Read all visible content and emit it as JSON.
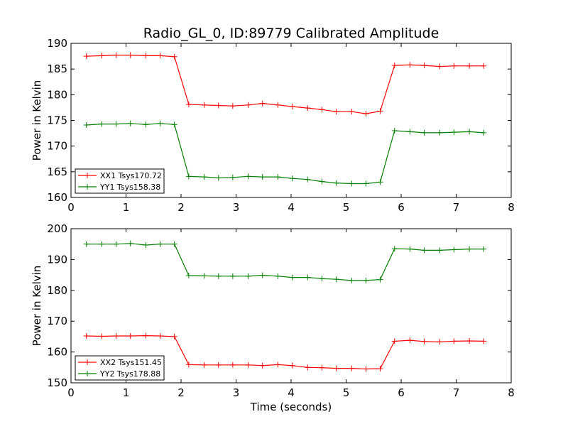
{
  "figure": {
    "title": "Radio_GL_0, ID:89779 Calibrated Amplitude"
  },
  "chart_data": [
    {
      "type": "line",
      "title": "Radio_GL_0, ID:89779 Calibrated Amplitude",
      "xlabel": "",
      "ylabel": "Power in Kelvin",
      "xlim": [
        0,
        8
      ],
      "ylim": [
        160,
        190
      ],
      "xticks": [
        0,
        1,
        2,
        3,
        4,
        5,
        6,
        7,
        8
      ],
      "yticks": [
        160,
        165,
        170,
        175,
        180,
        185,
        190
      ],
      "grid": false,
      "legend_position": "bottom-left",
      "x": [
        0.28,
        0.56,
        0.82,
        1.08,
        1.36,
        1.62,
        1.88,
        2.14,
        2.42,
        2.68,
        2.94,
        3.22,
        3.48,
        3.76,
        4.02,
        4.3,
        4.56,
        4.82,
        5.1,
        5.36,
        5.62,
        5.88,
        6.16,
        6.42,
        6.7,
        6.96,
        7.24,
        7.5
      ],
      "series": [
        {
          "name": "XX1 Tsys170.72",
          "color": "#ff0000",
          "values": [
            187.5,
            187.6,
            187.7,
            187.7,
            187.6,
            187.6,
            187.4,
            178.1,
            178.0,
            177.9,
            177.8,
            178.0,
            178.3,
            178.0,
            177.7,
            177.4,
            177.1,
            176.7,
            176.7,
            176.3,
            176.8,
            185.7,
            185.8,
            185.7,
            185.5,
            185.6,
            185.6,
            185.6
          ]
        },
        {
          "name": "YY1 Tsys158.38",
          "color": "#008000",
          "values": [
            174.1,
            174.3,
            174.3,
            174.4,
            174.2,
            174.4,
            174.2,
            164.1,
            164.0,
            163.8,
            163.9,
            164.1,
            164.0,
            164.0,
            163.7,
            163.5,
            163.1,
            162.8,
            162.7,
            162.7,
            163.0,
            173.0,
            172.8,
            172.6,
            172.6,
            172.7,
            172.8,
            172.6
          ]
        }
      ]
    },
    {
      "type": "line",
      "title": "",
      "xlabel": "Time (seconds)",
      "ylabel": "Power in Kelvin",
      "xlim": [
        0,
        8
      ],
      "ylim": [
        150,
        200
      ],
      "xticks": [
        0,
        1,
        2,
        3,
        4,
        5,
        6,
        7,
        8
      ],
      "yticks": [
        150,
        160,
        170,
        180,
        190,
        200
      ],
      "grid": false,
      "legend_position": "bottom-left",
      "x": [
        0.28,
        0.56,
        0.82,
        1.08,
        1.36,
        1.62,
        1.88,
        2.14,
        2.42,
        2.68,
        2.94,
        3.22,
        3.48,
        3.76,
        4.02,
        4.3,
        4.56,
        4.82,
        5.1,
        5.36,
        5.62,
        5.88,
        6.16,
        6.42,
        6.7,
        6.96,
        7.24,
        7.5
      ],
      "series": [
        {
          "name": "XX2 Tsys151.45",
          "color": "#ff0000",
          "values": [
            165.2,
            165.1,
            165.2,
            165.2,
            165.3,
            165.2,
            165.0,
            155.9,
            155.8,
            155.8,
            155.8,
            155.8,
            155.6,
            155.9,
            155.6,
            155.0,
            154.9,
            154.7,
            154.7,
            154.5,
            154.6,
            163.5,
            163.8,
            163.4,
            163.3,
            163.5,
            163.6,
            163.5
          ]
        },
        {
          "name": "YY2 Tsys178.88",
          "color": "#008000",
          "values": [
            195.0,
            195.0,
            195.0,
            195.2,
            194.7,
            195.0,
            195.0,
            184.8,
            184.7,
            184.6,
            184.6,
            184.6,
            184.9,
            184.6,
            184.2,
            184.2,
            183.8,
            183.6,
            183.2,
            183.2,
            183.5,
            193.5,
            193.4,
            193.0,
            193.0,
            193.2,
            193.4,
            193.4
          ]
        }
      ]
    }
  ]
}
